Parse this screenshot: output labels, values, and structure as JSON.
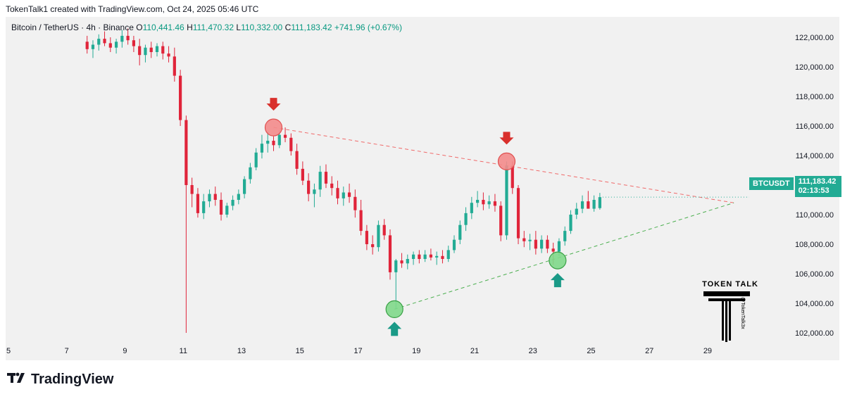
{
  "header": {
    "attribution": "TokenTalk1 created with TradingView.com, Oct 24, 2025 05:46 UTC"
  },
  "legend": {
    "symbol": "Bitcoin / TetherUS · 4h · Binance",
    "open_label": "O",
    "open": "110,441.46",
    "high_label": "H",
    "high": "111,470.32",
    "low_label": "L",
    "low": "110,332.00",
    "close_label": "C",
    "close": "111,183.42",
    "change": "+741.96 (+0.67%)"
  },
  "price_tag": {
    "symbol": "BTCUSDT",
    "price": "111,183.42",
    "countdown": "02:13:53"
  },
  "watermark": {
    "title": "TOKEN TALK",
    "handle": "@TokenTalk3x"
  },
  "footer": {
    "brand": "TradingView"
  },
  "colors": {
    "up": "#22ab94",
    "down": "#e0243a",
    "resistance": "#f06a6a",
    "support": "#4caf50",
    "arrow_down": "#d9302c",
    "arrow_up": "#1a9a87"
  },
  "chart_data": {
    "type": "candlestick",
    "symbol": "BTCUSDT",
    "timeframe": "4h",
    "x_ticks": [
      "5",
      "7",
      "9",
      "11",
      "13",
      "15",
      "17",
      "19",
      "21",
      "23",
      "25",
      "27",
      "29"
    ],
    "y_ticks": [
      "102,000.00",
      "104,000.00",
      "106,000.00",
      "108,000.00",
      "110,000.00",
      "112,000.00",
      "114,000.00",
      "116,000.00",
      "118,000.00",
      "120,000.00",
      "122,000.00"
    ],
    "ylim": [
      101000,
      123000
    ],
    "xlim": [
      5,
      30.5
    ],
    "last_price": 111183.42,
    "candles": [
      [
        7.7,
        121700,
        122100,
        120900,
        121200
      ],
      [
        7.9,
        121200,
        121800,
        120600,
        121500
      ],
      [
        8.1,
        121500,
        122200,
        121100,
        121900
      ],
      [
        8.3,
        121900,
        122400,
        121400,
        121600
      ],
      [
        8.5,
        121600,
        122000,
        121000,
        121300
      ],
      [
        8.7,
        121300,
        121900,
        120900,
        121700
      ],
      [
        8.9,
        121700,
        122500,
        121300,
        122100
      ],
      [
        9.1,
        122100,
        122600,
        121500,
        121800
      ],
      [
        9.3,
        121800,
        122100,
        121000,
        121400
      ],
      [
        9.5,
        121400,
        121900,
        120100,
        120800
      ],
      [
        9.7,
        120800,
        121500,
        120300,
        121300
      ],
      [
        9.9,
        121300,
        121700,
        120600,
        121000
      ],
      [
        10.1,
        121000,
        121600,
        120700,
        121400
      ],
      [
        10.3,
        121400,
        121700,
        120500,
        120900
      ],
      [
        10.5,
        120900,
        121400,
        120300,
        120700
      ],
      [
        10.7,
        120700,
        121300,
        119000,
        119400
      ],
      [
        10.9,
        119400,
        119800,
        116000,
        116400
      ],
      [
        11.1,
        116400,
        116700,
        102000,
        112000
      ],
      [
        11.3,
        112000,
        112500,
        110500,
        111400
      ],
      [
        11.5,
        111400,
        111800,
        109800,
        110100
      ],
      [
        11.7,
        110100,
        111400,
        109700,
        110900
      ],
      [
        11.9,
        110900,
        111700,
        110500,
        111400
      ],
      [
        12.1,
        111400,
        111900,
        110600,
        111000
      ],
      [
        12.3,
        111000,
        111500,
        109600,
        110000
      ],
      [
        12.5,
        110000,
        110800,
        109800,
        110600
      ],
      [
        12.7,
        110600,
        111300,
        110300,
        111000
      ],
      [
        12.9,
        111000,
        111700,
        110700,
        111400
      ],
      [
        13.1,
        111400,
        112600,
        111100,
        112400
      ],
      [
        13.3,
        112400,
        113500,
        112100,
        113200
      ],
      [
        13.5,
        113200,
        114500,
        113000,
        114200
      ],
      [
        13.7,
        114200,
        115400,
        113800,
        114800
      ],
      [
        13.9,
        114800,
        115600,
        114200,
        115000
      ],
      [
        14.1,
        115000,
        115300,
        114300,
        114700
      ],
      [
        14.3,
        114700,
        115700,
        114500,
        115400
      ],
      [
        14.5,
        115400,
        115900,
        114900,
        115200
      ],
      [
        14.7,
        115200,
        115500,
        114000,
        114300
      ],
      [
        14.9,
        114300,
        114800,
        112700,
        113100
      ],
      [
        15.1,
        113100,
        113600,
        112000,
        112300
      ],
      [
        15.3,
        112300,
        112800,
        110900,
        111400
      ],
      [
        15.5,
        111400,
        112100,
        110500,
        111700
      ],
      [
        15.7,
        111700,
        113300,
        111200,
        112900
      ],
      [
        15.9,
        112900,
        113400,
        111800,
        112100
      ],
      [
        16.1,
        112100,
        112600,
        111300,
        111800
      ],
      [
        16.3,
        111800,
        112300,
        110700,
        111100
      ],
      [
        16.5,
        111100,
        111900,
        110600,
        111500
      ],
      [
        16.7,
        111500,
        112100,
        110800,
        111200
      ],
      [
        16.9,
        111200,
        111700,
        109800,
        110300
      ],
      [
        17.1,
        110300,
        111000,
        108600,
        108900
      ],
      [
        17.3,
        108900,
        109300,
        107600,
        108000
      ],
      [
        17.5,
        108000,
        108600,
        107300,
        107800
      ],
      [
        17.7,
        107800,
        109600,
        107500,
        109300
      ],
      [
        17.9,
        109300,
        109700,
        108300,
        108600
      ],
      [
        18.1,
        108600,
        109000,
        105600,
        106100
      ],
      [
        18.3,
        106100,
        107000,
        103600,
        106900
      ],
      [
        18.5,
        106900,
        107400,
        106400,
        106700
      ],
      [
        18.7,
        106700,
        107300,
        106300,
        107000
      ],
      [
        18.9,
        107000,
        107500,
        106600,
        107300
      ],
      [
        19.1,
        107300,
        107600,
        106700,
        107000
      ],
      [
        19.3,
        107000,
        107600,
        106800,
        107300
      ],
      [
        19.5,
        107300,
        107700,
        106900,
        107100
      ],
      [
        19.7,
        107100,
        107500,
        106600,
        107200
      ],
      [
        19.9,
        107200,
        107600,
        106700,
        107000
      ],
      [
        20.1,
        107000,
        107900,
        106800,
        107600
      ],
      [
        20.3,
        107600,
        108600,
        107400,
        108300
      ],
      [
        20.5,
        108300,
        109600,
        108000,
        109300
      ],
      [
        20.7,
        109300,
        110500,
        108900,
        110100
      ],
      [
        20.9,
        110100,
        111200,
        109700,
        110800
      ],
      [
        21.1,
        110800,
        111600,
        110500,
        111000
      ],
      [
        21.3,
        111000,
        111500,
        110300,
        110700
      ],
      [
        21.5,
        110700,
        111300,
        110400,
        110900
      ],
      [
        21.7,
        110900,
        111400,
        110200,
        110600
      ],
      [
        21.9,
        110600,
        110900,
        108200,
        108600
      ],
      [
        22.1,
        108600,
        113600,
        108300,
        113300
      ],
      [
        22.3,
        113300,
        113600,
        111400,
        111800
      ],
      [
        22.5,
        111800,
        112000,
        108000,
        108400
      ],
      [
        22.7,
        108400,
        108900,
        107800,
        108200
      ],
      [
        22.9,
        108200,
        108700,
        107600,
        108300
      ],
      [
        23.1,
        108300,
        108900,
        107300,
        107700
      ],
      [
        23.3,
        107700,
        108600,
        107400,
        108300
      ],
      [
        23.5,
        108300,
        108600,
        107400,
        107700
      ],
      [
        23.7,
        107700,
        108100,
        106600,
        107500
      ],
      [
        23.9,
        107500,
        108400,
        107200,
        108200
      ],
      [
        24.1,
        108200,
        109200,
        107900,
        108900
      ],
      [
        24.3,
        108900,
        110300,
        108700,
        110000
      ],
      [
        24.5,
        110000,
        110800,
        109700,
        110400
      ],
      [
        24.7,
        110400,
        111300,
        110100,
        110900
      ],
      [
        24.9,
        110900,
        111600,
        110500,
        110400
      ],
      [
        25.1,
        110400,
        111300,
        110200,
        111000
      ],
      [
        25.3,
        110441.46,
        111470.32,
        110332,
        111183.42
      ]
    ],
    "trendlines": [
      {
        "name": "resistance",
        "from": [
          14.1,
          115900
        ],
        "to": [
          29.9,
          110800
        ]
      },
      {
        "name": "support",
        "from": [
          18.25,
          103600
        ],
        "to": [
          29.9,
          110800
        ]
      }
    ],
    "markers": [
      {
        "type": "top",
        "x": 14.1,
        "y": 115900
      },
      {
        "type": "top",
        "x": 22.1,
        "y": 113600
      },
      {
        "type": "bottom",
        "x": 18.25,
        "y": 103600
      },
      {
        "type": "bottom",
        "x": 23.85,
        "y": 106900
      }
    ]
  }
}
